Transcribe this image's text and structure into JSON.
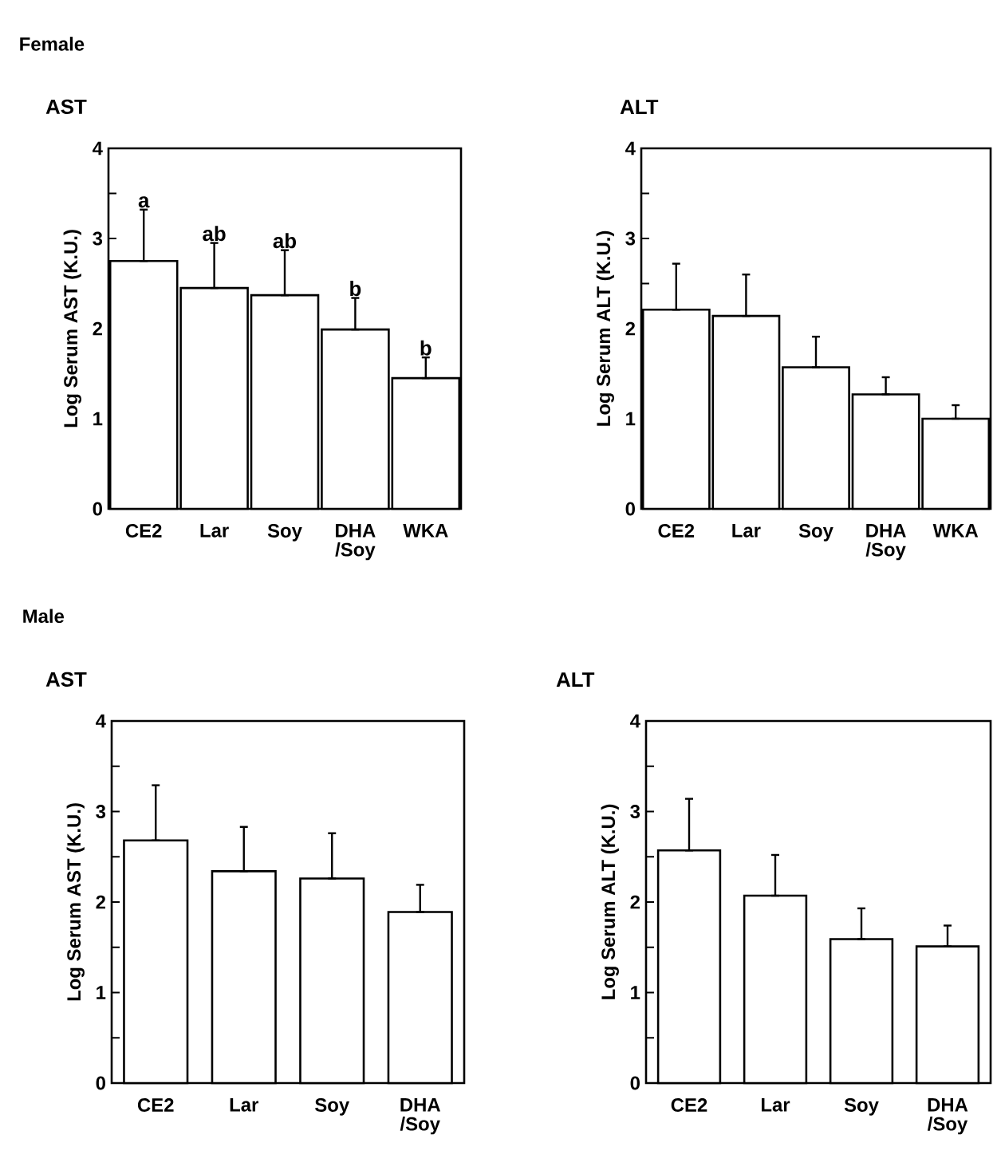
{
  "chart_data": [
    {
      "type": "bar",
      "title": "AST",
      "ylabel": "Log Serum AST (K.U.)",
      "categories": [
        "CE2",
        "Lar",
        "Soy",
        "DHA /Soy",
        "WKA"
      ],
      "values": [
        2.75,
        2.45,
        2.37,
        1.99,
        1.45
      ],
      "errors": [
        [
          2.75,
          3.32
        ],
        [
          2.45,
          2.95
        ],
        [
          2.37,
          2.87
        ],
        [
          1.99,
          2.34
        ],
        [
          1.45,
          1.68
        ]
      ],
      "color": "#ffffff",
      "ylim": [
        0,
        4
      ],
      "yticks": [
        0,
        {
          "value": 0.5,
          "label": null
        },
        1,
        {
          "value": 1.5,
          "label": null
        },
        2,
        {
          "value": 2.5,
          "label": null
        },
        3,
        {
          "value": 3.5,
          "label": null
        },
        4
      ],
      "annotations": [
        "Female",
        "a",
        "ab",
        "ab",
        "b",
        "b"
      ]
    },
    {
      "type": "bar",
      "title": "ALT",
      "ylabel": "Log Serum ALT (K.U.)",
      "categories": [
        "CE2",
        "Lar",
        "Soy",
        "DHA /Soy",
        "WKA"
      ],
      "values": [
        2.21,
        2.14,
        1.57,
        1.27,
        1.0
      ],
      "errors": [
        [
          2.21,
          2.72
        ],
        [
          2.14,
          2.6
        ],
        [
          1.57,
          1.91
        ],
        [
          1.27,
          1.46
        ],
        [
          1.0,
          1.15
        ]
      ],
      "color": "#ffffff",
      "ylim": [
        0,
        4
      ],
      "yticks": [
        0,
        {
          "value": 0.5,
          "label": null
        },
        1,
        {
          "value": 1.5,
          "label": null
        },
        2,
        {
          "value": 2.5,
          "label": null
        },
        3,
        {
          "value": 3.5,
          "label": null
        },
        4
      ]
    },
    {
      "type": "bar",
      "title": "AST",
      "ylabel": "Log Serum AST (K.U.)",
      "categories": [
        "CE2",
        "Lar",
        "Soy",
        "DHA /Soy"
      ],
      "values": [
        2.68,
        2.34,
        2.26,
        1.89
      ],
      "errors": [
        [
          2.68,
          3.29
        ],
        [
          2.34,
          2.83
        ],
        [
          2.26,
          2.76
        ],
        [
          1.89,
          2.19
        ]
      ],
      "color": "#ffffff",
      "ylim": [
        0,
        4
      ],
      "yticks": [
        0,
        {
          "value": 0.5,
          "label": null
        },
        1,
        {
          "value": 1.5,
          "label": null
        },
        2,
        {
          "value": 2.5,
          "label": null
        },
        3,
        {
          "value": 3.5,
          "label": null
        },
        4
      ],
      "annotations": [
        "Male"
      ]
    },
    {
      "type": "bar",
      "title": "ALT",
      "ylabel": "Log Serum ALT (K.U.)",
      "categories": [
        "CE2",
        "Lar",
        "Soy",
        "DHA /Soy"
      ],
      "values": [
        2.57,
        2.07,
        1.59,
        1.51
      ],
      "errors": [
        [
          2.57,
          3.14
        ],
        [
          2.07,
          2.52
        ],
        [
          1.59,
          1.93
        ],
        [
          1.51,
          1.74
        ]
      ],
      "color": "#ffffff",
      "ylim": [
        0,
        4
      ],
      "yticks": [
        0,
        {
          "value": 0.5,
          "label": null
        },
        1,
        {
          "value": 1.5,
          "label": null
        },
        2,
        {
          "value": 2.5,
          "label": null
        },
        3,
        {
          "value": 3.5,
          "label": null
        },
        4
      ]
    }
  ]
}
